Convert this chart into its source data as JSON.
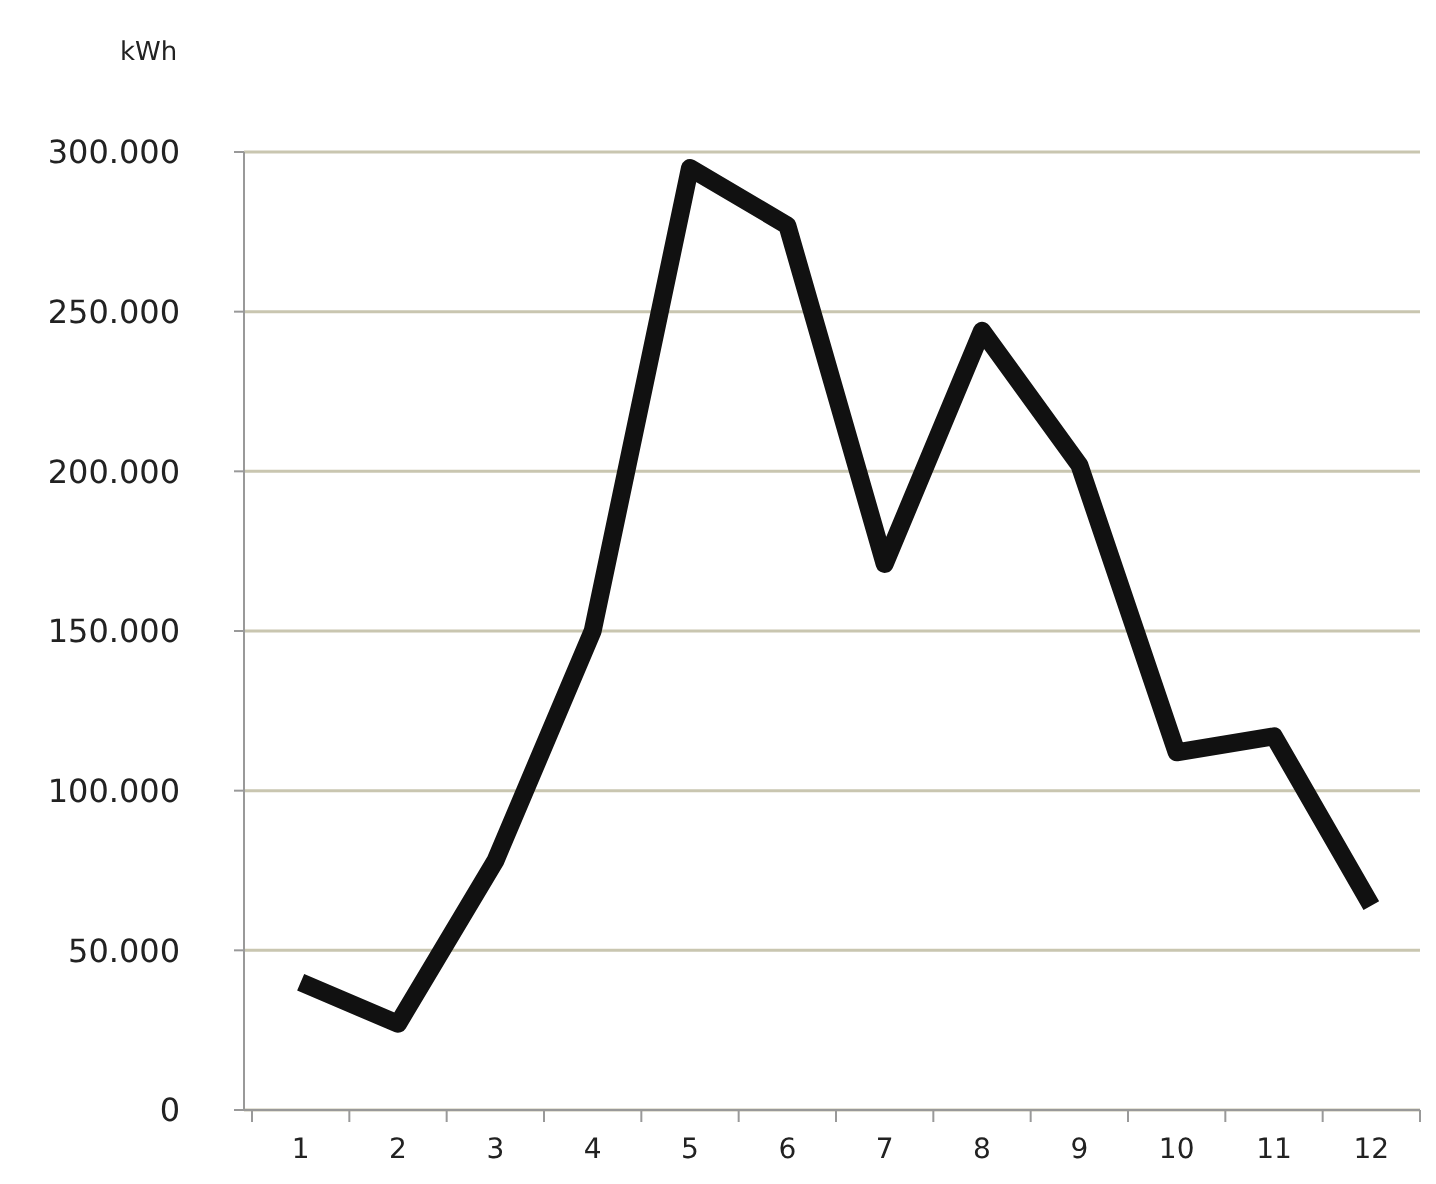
{
  "chart_data": {
    "type": "line",
    "ylabel": "kWh",
    "x": [
      1,
      2,
      3,
      4,
      5,
      6,
      7,
      8,
      9,
      10,
      11,
      12
    ],
    "xlim": [
      0.5,
      12.5
    ],
    "xticks": [
      1,
      2,
      3,
      4,
      5,
      6,
      7,
      8,
      9,
      10,
      11,
      12
    ],
    "series": [
      {
        "color": "#111111",
        "values": [
          40000,
          27000,
          78000,
          150000,
          295000,
          277000,
          171000,
          244000,
          202000,
          112000,
          117000,
          64000
        ]
      }
    ],
    "ylim": [
      0,
      300000
    ],
    "yticks": [
      0,
      {
        "value": 50000,
        "label": "50.000"
      },
      {
        "value": 100000,
        "label": "100.000"
      },
      {
        "value": 150000,
        "label": "150.000"
      },
      {
        "value": 200000,
        "label": "200.000"
      },
      {
        "value": 250000,
        "label": "250.000"
      },
      {
        "value": 300000,
        "label": "300.000"
      }
    ],
    "grid": "y",
    "marker": "none",
    "line_style": "solid"
  }
}
